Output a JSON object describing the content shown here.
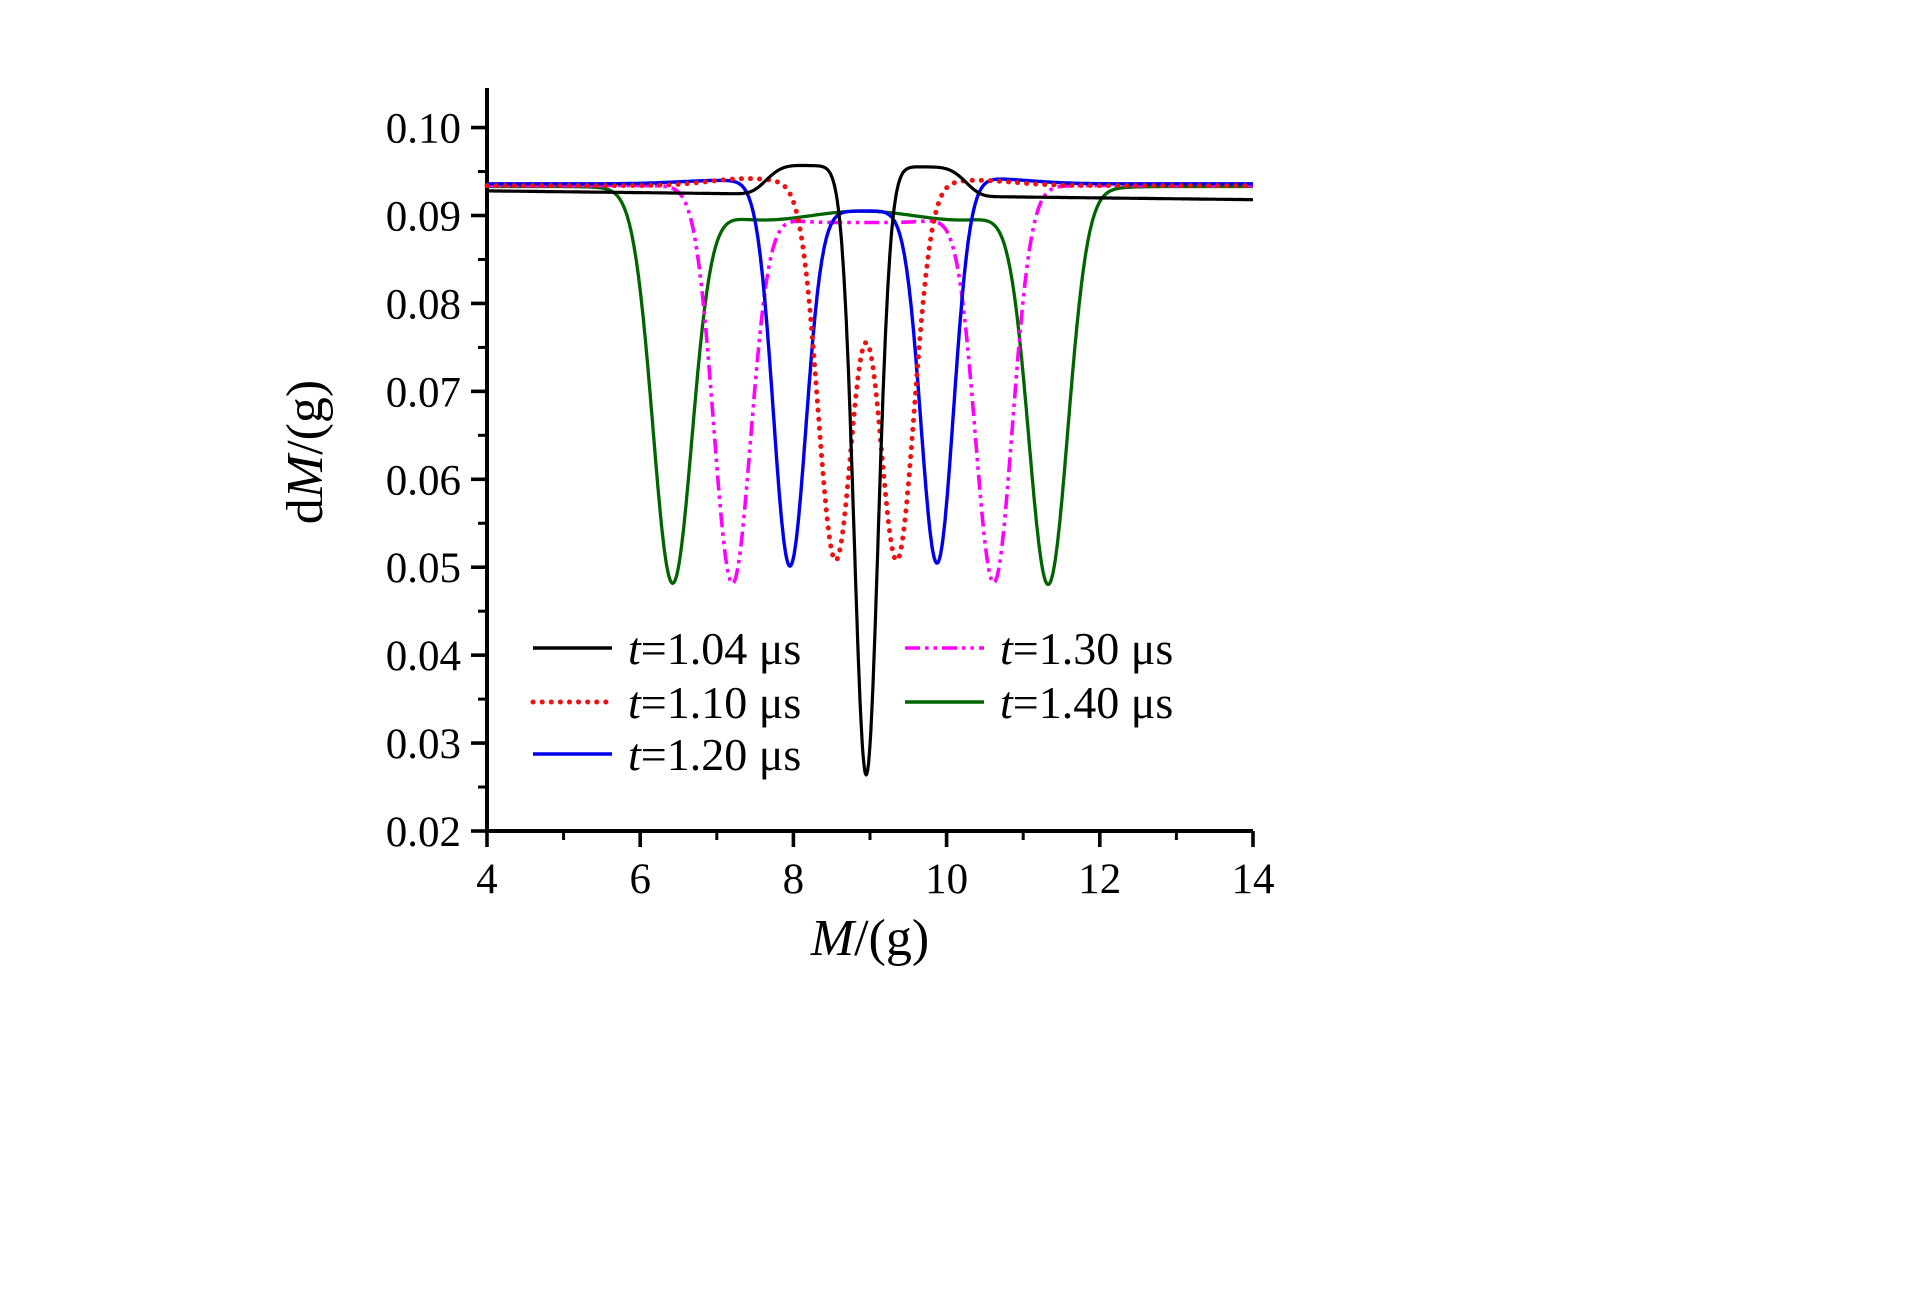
{
  "page": {
    "background": "#ffffff"
  },
  "chart_data": {
    "type": "line",
    "title": "",
    "xlabel_parts": [
      {
        "text": "M",
        "italic": true
      },
      {
        "text": "/(g)",
        "italic": false
      }
    ],
    "ylabel_parts": [
      {
        "text": "d",
        "italic": false
      },
      {
        "text": "M",
        "italic": true
      },
      {
        "text": "/(g)",
        "italic": false
      }
    ],
    "xlim": [
      4,
      14
    ],
    "ylim": [
      0.02,
      0.1045
    ],
    "axis_color": "#000000",
    "grid": false,
    "legend_position": "inside-lower-left, two columns",
    "x_major_ticks": [
      {
        "v": 4,
        "label": "4"
      },
      {
        "v": 6,
        "label": "6"
      },
      {
        "v": 8,
        "label": "8"
      },
      {
        "v": 10,
        "label": "10"
      },
      {
        "v": 12,
        "label": "12"
      },
      {
        "v": 14,
        "label": "14"
      }
    ],
    "x_minor_ticks": [
      5,
      7,
      9,
      11,
      13
    ],
    "y_major_ticks": [
      {
        "v": 0.02,
        "label": "0.02"
      },
      {
        "v": 0.03,
        "label": "0.03"
      },
      {
        "v": 0.04,
        "label": "0.04"
      },
      {
        "v": 0.05,
        "label": "0.05"
      },
      {
        "v": 0.06,
        "label": "0.06"
      },
      {
        "v": 0.07,
        "label": "0.07"
      },
      {
        "v": 0.08,
        "label": "0.08"
      },
      {
        "v": 0.09,
        "label": "0.09"
      },
      {
        "v": 0.1,
        "label": "0.10"
      }
    ],
    "y_minor_ticks": [
      0.025,
      0.035,
      0.045,
      0.055,
      0.065,
      0.075,
      0.085,
      0.095
    ],
    "series": [
      {
        "name": "t=1.04 μs",
        "label_parts": [
          {
            "text": "t",
            "italic": true
          },
          {
            "text": "=1.04 μs",
            "italic": false
          }
        ],
        "color": "#000000",
        "dash": "solid",
        "width": 3.2,
        "model": {
          "base": 0.0923,
          "terms": [
            {
              "type": "lin",
              "slope": -0.0001,
              "center": 9
            },
            {
              "type": "gauss",
              "amp": 0.0033,
              "center": 8.2,
              "sigma": 0.6,
              "power": 4
            },
            {
              "type": "gauss",
              "amp": 0.0033,
              "center": 9.7,
              "sigma": 0.6,
              "power": 4
            },
            {
              "type": "gauss",
              "amp": -0.0665,
              "center": 8.95,
              "sigma": 0.22,
              "power": 2
            }
          ]
        },
        "key_points": {
          "baseline": 0.0925,
          "shoulder_peaks": [
            {
              "x": 8.2,
              "y": 0.0955
            },
            {
              "x": 9.7,
              "y": 0.0955
            }
          ],
          "minimum": {
            "x": 8.95,
            "y": 0.026
          }
        }
      },
      {
        "name": "t=1.10 μs",
        "label_parts": [
          {
            "text": "t",
            "italic": true
          },
          {
            "text": "=1.10 μs",
            "italic": false
          }
        ],
        "color": "#ee1111",
        "dash": "dotted",
        "width": 5,
        "model": {
          "base": 0.0934,
          "terms": [
            {
              "type": "gauss",
              "amp": 0.0008,
              "center": 7.4,
              "sigma": 0.7,
              "power": 2
            },
            {
              "type": "gauss",
              "amp": 0.0006,
              "center": 10.4,
              "sigma": 0.7,
              "power": 2
            },
            {
              "type": "gauss",
              "amp": -0.0426,
              "center": 8.55,
              "sigma": 0.32,
              "power": 2
            },
            {
              "type": "gauss",
              "amp": -0.0426,
              "center": 9.35,
              "sigma": 0.32,
              "power": 2
            }
          ]
        },
        "key_points": {
          "baseline": 0.0934,
          "minima": [
            {
              "x": 8.55,
              "y": 0.051
            },
            {
              "x": 9.35,
              "y": 0.051
            }
          ],
          "central_peak": {
            "x": 8.95,
            "y": 0.0755
          }
        }
      },
      {
        "name": "t=1.20 μs",
        "label_parts": [
          {
            "text": "t",
            "italic": true
          },
          {
            "text": "=1.20 μs",
            "italic": false
          }
        ],
        "color": "#0000ee",
        "dash": "solid",
        "width": 3.4,
        "model": {
          "base": 0.0936,
          "terms": [
            {
              "type": "gauss",
              "amp": -0.0031,
              "center": 8.9,
              "sigma": 1.05,
              "power": 4
            },
            {
              "type": "gauss",
              "amp": 0.0004,
              "center": 7.1,
              "sigma": 0.8,
              "power": 2
            },
            {
              "type": "gauss",
              "amp": 0.0006,
              "center": 10.5,
              "sigma": 0.8,
              "power": 2
            },
            {
              "type": "gauss",
              "amp": -0.042,
              "center": 7.95,
              "sigma": 0.3,
              "power": 2
            },
            {
              "type": "gauss",
              "amp": -0.042,
              "center": 9.88,
              "sigma": 0.3,
              "power": 2
            }
          ]
        },
        "key_points": {
          "baseline": 0.0936,
          "minima": [
            {
              "x": 7.95,
              "y": 0.05
            },
            {
              "x": 9.88,
              "y": 0.0495
            }
          ],
          "central_plateau": 0.0905
        }
      },
      {
        "name": "t=1.30 μs",
        "label_parts": [
          {
            "text": "t",
            "italic": true
          },
          {
            "text": "=1.30 μs",
            "italic": false
          }
        ],
        "color": "#ff00ff",
        "dash": "dashdotdot",
        "width": 3.6,
        "model": {
          "base": 0.0934,
          "terms": [
            {
              "type": "gauss",
              "amp": -0.0042,
              "center": 8.9,
              "sigma": 1.75,
              "power": 4
            },
            {
              "type": "gauss",
              "amp": -0.0435,
              "center": 7.2,
              "sigma": 0.34,
              "power": 2
            },
            {
              "type": "gauss",
              "amp": -0.0435,
              "center": 10.62,
              "sigma": 0.34,
              "power": 2
            }
          ]
        },
        "key_points": {
          "baseline": 0.0934,
          "minima": [
            {
              "x": 7.2,
              "y": 0.0483
            },
            {
              "x": 10.62,
              "y": 0.0485
            }
          ],
          "central_plateau": 0.089
        }
      },
      {
        "name": "t=1.40 μs",
        "label_parts": [
          {
            "text": "t",
            "italic": true
          },
          {
            "text": "=1.40 μs",
            "italic": false
          }
        ],
        "color": "#006400",
        "dash": "solid",
        "width": 3.3,
        "model": {
          "base": 0.0933,
          "terms": [
            {
              "type": "gauss",
              "amp": -0.0047,
              "center": 8.9,
              "sigma": 2.45,
              "power": 4
            },
            {
              "type": "gauss",
              "amp": 0.0019,
              "center": 8.9,
              "sigma": 1.15,
              "power": 2
            },
            {
              "type": "gauss",
              "amp": -0.0435,
              "center": 6.42,
              "sigma": 0.36,
              "power": 2
            },
            {
              "type": "gauss",
              "amp": -0.0435,
              "center": 11.33,
              "sigma": 0.36,
              "power": 2
            }
          ]
        },
        "key_points": {
          "baseline": 0.0933,
          "minima": [
            {
              "x": 6.42,
              "y": 0.048
            },
            {
              "x": 11.33,
              "y": 0.048
            }
          ],
          "central_plateau": 0.0905
        }
      }
    ]
  }
}
